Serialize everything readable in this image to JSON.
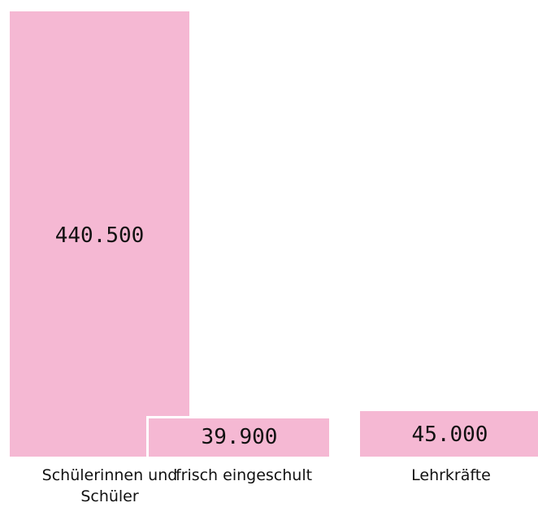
{
  "chart_data": {
    "type": "bar",
    "categories": [
      "Schülerinnen und Schüler",
      "frisch eingeschult",
      "Lehrkräfte"
    ],
    "values": [
      440500,
      39900,
      45000
    ],
    "value_labels": [
      "440.500",
      "39.900",
      "45.000"
    ],
    "color": "#f5b8d3"
  }
}
